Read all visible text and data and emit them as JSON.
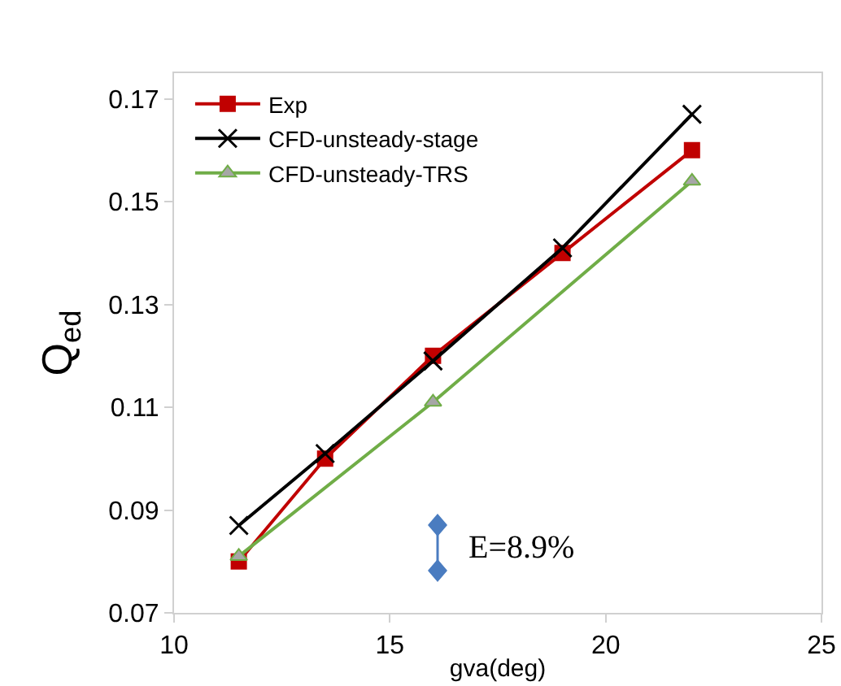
{
  "chart_data": {
    "type": "line",
    "xlabel": "gva(deg)",
    "ylabel": "Q$_{ed}$",
    "xlim": [
      10,
      25
    ],
    "xticks": [
      10,
      15,
      20,
      25
    ],
    "ylim": [
      0.07,
      0.175
    ],
    "yticks": [
      0.07,
      0.09,
      0.11,
      0.13,
      0.15,
      0.17
    ],
    "grid": false,
    "legend": "top left",
    "line_style": "solid",
    "annotations": [
      "E=8.9%"
    ],
    "series": [
      {
        "name": "Exp",
        "color": "#c00000",
        "marker": "square",
        "x": [
          11.5,
          13.5,
          16,
          19,
          22
        ],
        "values": [
          0.08,
          0.1,
          0.12,
          0.14,
          0.16
        ]
      },
      {
        "name": "CFD-unsteady-stage",
        "color": "#000000",
        "marker": "cross",
        "x": [
          11.5,
          13.5,
          16,
          19,
          22
        ],
        "values": [
          0.087,
          0.101,
          0.119,
          0.141,
          0.167
        ]
      },
      {
        "name": "CFD-unsteady-TRS",
        "color": "#70ad47",
        "marker": "triangle",
        "x": [
          11.5,
          16,
          22
        ],
        "values": [
          0.081,
          0.111,
          0.154
        ]
      }
    ]
  }
}
